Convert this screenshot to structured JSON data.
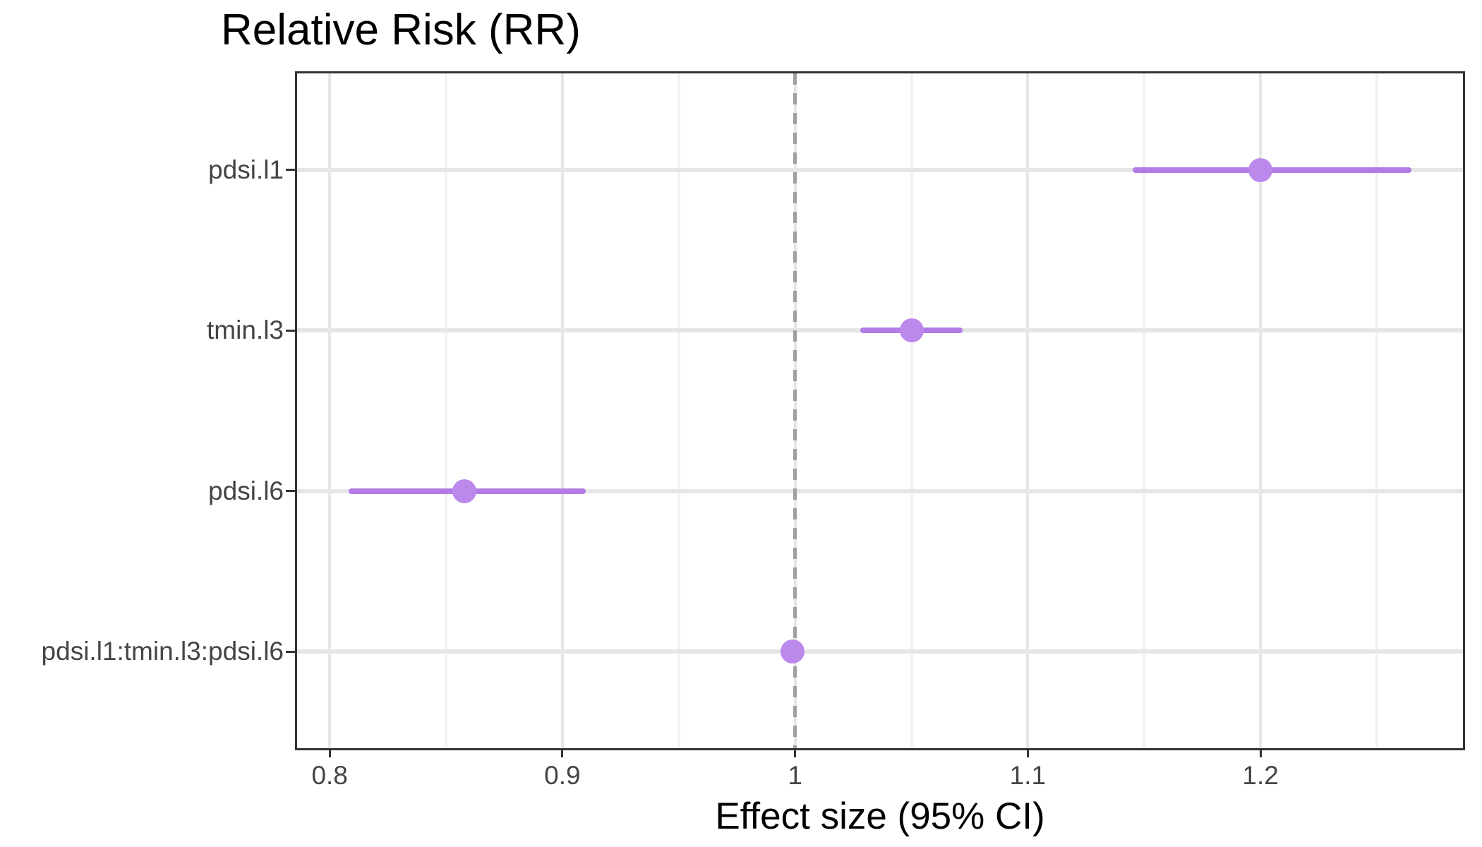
{
  "chart_data": {
    "type": "scatter",
    "subtype": "forest-plot",
    "orientation": "horizontal",
    "title": "Relative Risk (RR)",
    "xlabel": "Effect size (95% CI)",
    "ylabel": "",
    "xlim": [
      0.786,
      1.287
    ],
    "x_major_ticks": [
      0.8,
      0.9,
      1.0,
      1.1,
      1.2
    ],
    "x_tick_labels": [
      "0.8",
      "0.9",
      "1",
      "1.1",
      "1.2"
    ],
    "x_minor_ticks": [
      0.85,
      0.95,
      1.05,
      1.15,
      1.25
    ],
    "grid": true,
    "legend": false,
    "reference_line": {
      "x": 1.0,
      "style": "dashed"
    },
    "categories": [
      "pdsi.l1",
      "tmin.l3",
      "pdsi.l6",
      "pdsi.l1:tmin.l3:pdsi.l6"
    ],
    "series": [
      {
        "label": "pdsi.l1",
        "estimate": 1.2,
        "ci_low": 1.145,
        "ci_high": 1.265
      },
      {
        "label": "tmin.l3",
        "estimate": 1.05,
        "ci_low": 1.028,
        "ci_high": 1.072
      },
      {
        "label": "pdsi.l6",
        "estimate": 0.858,
        "ci_low": 0.808,
        "ci_high": 0.91
      },
      {
        "label": "pdsi.l1:tmin.l3:pdsi.l6",
        "estimate": 0.999,
        "ci_low": 0.997,
        "ci_high": 1.001
      }
    ],
    "colors": {
      "point": "#bb89eb",
      "ci_line": "#b27be6",
      "reference": "#a0a0a0",
      "grid_major": "#e6e6e6",
      "grid_minor": "#f2f2f2",
      "panel_border": "#333333",
      "axis_text": "#444444",
      "title_text": "#000000"
    }
  }
}
